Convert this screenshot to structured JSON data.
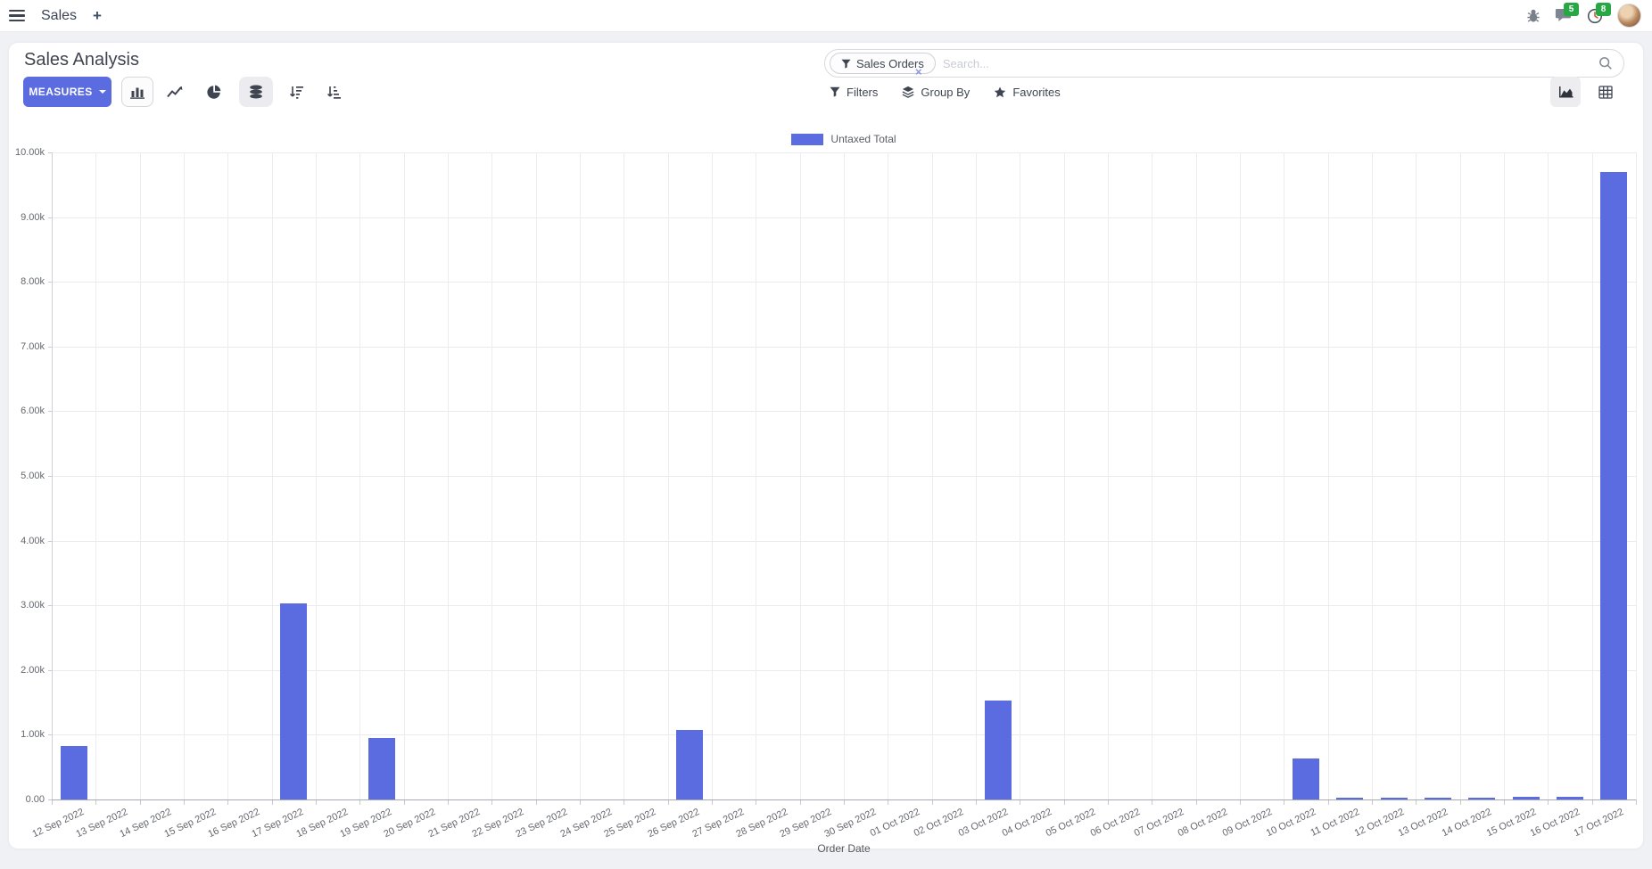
{
  "navbar": {
    "app_name": "Sales",
    "chat_badge": "5",
    "clock_badge": "8"
  },
  "header": {
    "title": "Sales Analysis"
  },
  "search": {
    "facet_label": "Sales Orders",
    "placeholder": "Search...",
    "remove_symbol": "×"
  },
  "toolbar": {
    "measures_label": "MEASURES",
    "filters_label": "Filters",
    "group_by_label": "Group By",
    "favorites_label": "Favorites"
  },
  "colors": {
    "accent": "#5B6BE0",
    "badge_green": "#28a745"
  },
  "chart_data": {
    "type": "bar",
    "legend_label": "Untaxed Total",
    "series_color": "#5B6BE0",
    "xlabel": "Order Date",
    "ylim": [
      0,
      10000
    ],
    "ytick_step": 1000,
    "ytick_labels": [
      "0.00",
      "1.00k",
      "2.00k",
      "3.00k",
      "4.00k",
      "5.00k",
      "6.00k",
      "7.00k",
      "8.00k",
      "9.00k",
      "10.00k"
    ],
    "grid": true,
    "legend_position": "top",
    "categories": [
      "12 Sep 2022",
      "13 Sep 2022",
      "14 Sep 2022",
      "15 Sep 2022",
      "16 Sep 2022",
      "17 Sep 2022",
      "18 Sep 2022",
      "19 Sep 2022",
      "20 Sep 2022",
      "21 Sep 2022",
      "22 Sep 2022",
      "23 Sep 2022",
      "24 Sep 2022",
      "25 Sep 2022",
      "26 Sep 2022",
      "27 Sep 2022",
      "28 Sep 2022",
      "29 Sep 2022",
      "30 Sep 2022",
      "01 Oct 2022",
      "02 Oct 2022",
      "03 Oct 2022",
      "04 Oct 2022",
      "05 Oct 2022",
      "06 Oct 2022",
      "07 Oct 2022",
      "08 Oct 2022",
      "09 Oct 2022",
      "10 Oct 2022",
      "11 Oct 2022",
      "12 Oct 2022",
      "13 Oct 2022",
      "14 Oct 2022",
      "15 Oct 2022",
      "16 Oct 2022",
      "17 Oct 2022"
    ],
    "values": [
      830,
      0,
      0,
      0,
      0,
      3030,
      0,
      950,
      0,
      0,
      0,
      0,
      0,
      0,
      1070,
      0,
      0,
      0,
      0,
      0,
      0,
      1530,
      0,
      0,
      0,
      0,
      0,
      0,
      640,
      25,
      20,
      30,
      25,
      45,
      35,
      9700
    ]
  }
}
